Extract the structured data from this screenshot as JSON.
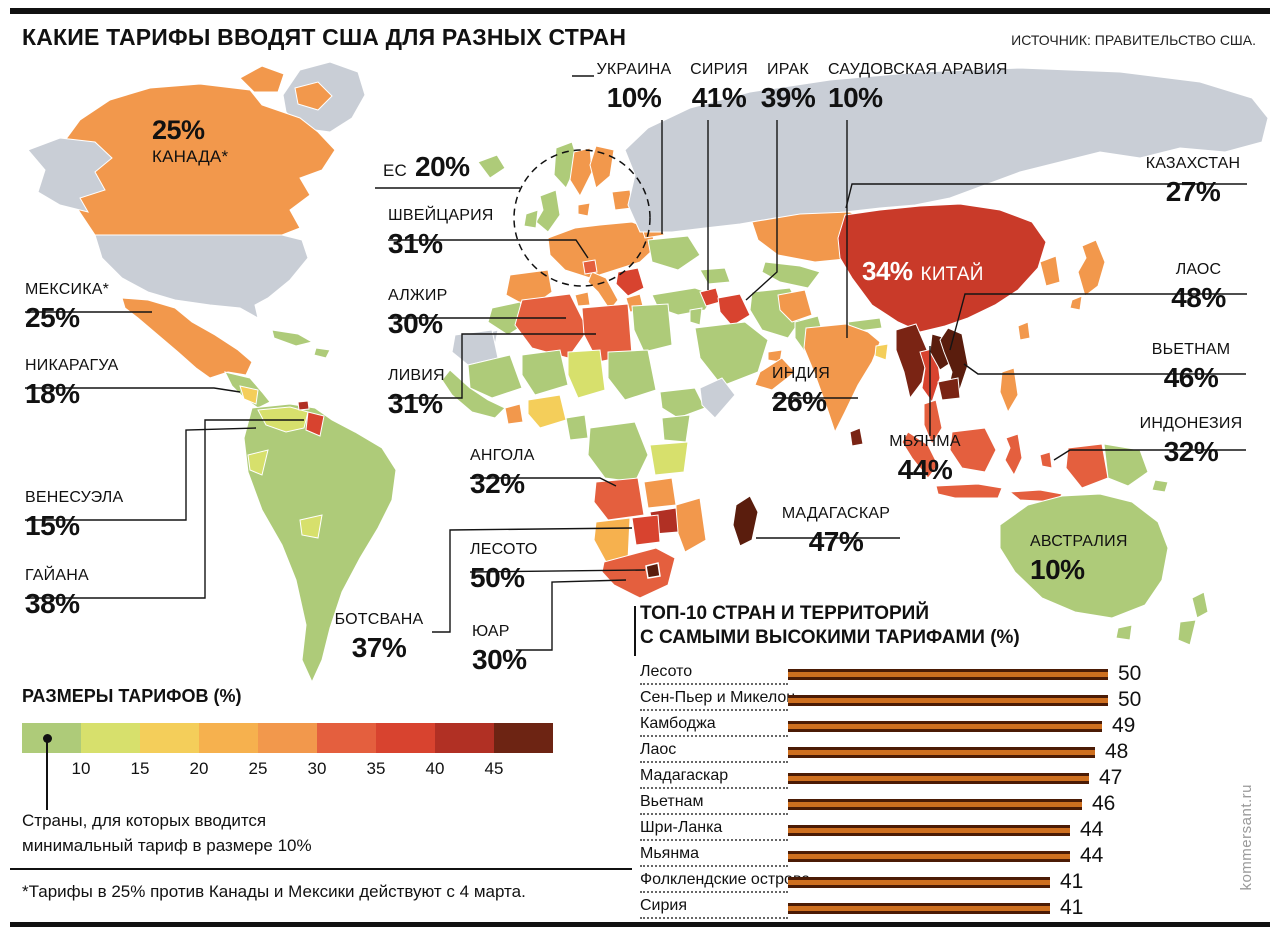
{
  "title": "КАКИЕ ТАРИФЫ ВВОДЯТ США ДЛЯ РАЗНЫХ СТРАН",
  "source": "ИСТОЧНИК: ПРАВИТЕЛЬСТВО США.",
  "watermark": "kommersant.ru",
  "colors": {
    "land_gray": "#c9ced6",
    "green": "#aecb79",
    "yellow_green": "#d7e06c",
    "yellow": "#f4ce5a",
    "light_orange": "#f6b14e",
    "orange": "#f2984c",
    "orange_red": "#e45f3e",
    "red": "#d8432f",
    "dark_red": "#b13024",
    "brown": "#7a2414",
    "dark_brown": "#5a1d0d",
    "china_red": "#c93a29",
    "bar_dark": "#4b1b05",
    "bar_orange": "#ce6f1f"
  },
  "labels": {
    "canada": {
      "name": "КАНАДА*",
      "value": "25%"
    },
    "mexico": {
      "name": "МЕКСИКА*",
      "value": "25%"
    },
    "nicaragua": {
      "name": "НИКАРАГУА",
      "value": "18%"
    },
    "venezuela": {
      "name": "ВЕНЕСУЭЛА",
      "value": "15%"
    },
    "guyana": {
      "name": "ГАЙАНА",
      "value": "38%"
    },
    "ec": {
      "name": "ЕС",
      "value": "20%"
    },
    "switzerland": {
      "name": "ШВЕЙЦАРИЯ",
      "value": "31%"
    },
    "ukraine": {
      "name": "УКРАИНА",
      "value": "10%"
    },
    "syria": {
      "name": "СИРИЯ",
      "value": "41%"
    },
    "iraq": {
      "name": "ИРАК",
      "value": "39%"
    },
    "saudi": {
      "name": "САУДОВСКАЯ АРАВИЯ",
      "value": "10%"
    },
    "kazakhstan": {
      "name": "КАЗАХСТАН",
      "value": "27%"
    },
    "china": {
      "name": "КИТАЙ",
      "value": "34%"
    },
    "laos": {
      "name": "ЛАОС",
      "value": "48%"
    },
    "vietnam": {
      "name": "ВЬЕТНАМ",
      "value": "46%"
    },
    "india": {
      "name": "ИНДИЯ",
      "value": "26%"
    },
    "myanmar": {
      "name": "МЬЯНМА",
      "value": "44%"
    },
    "indonesia": {
      "name": "ИНДОНЕЗИЯ",
      "value": "32%"
    },
    "algeria": {
      "name": "АЛЖИР",
      "value": "30%"
    },
    "libya": {
      "name": "ЛИВИЯ",
      "value": "31%"
    },
    "angola": {
      "name": "АНГОЛА",
      "value": "32%"
    },
    "madagascar": {
      "name": "МАДАГАСКАР",
      "value": "47%"
    },
    "lesotho": {
      "name": "ЛЕСОТО",
      "value": "50%"
    },
    "botswana": {
      "name": "БОТСВАНА",
      "value": "37%"
    },
    "yuar": {
      "name": "ЮАР",
      "value": "30%"
    },
    "australia": {
      "name": "АВСТРАЛИЯ",
      "value": "10%"
    }
  },
  "legend": {
    "title": "РАЗМЕРЫ ТАРИФОВ (%)",
    "ticks": [
      "10",
      "15",
      "20",
      "25",
      "30",
      "35",
      "40",
      "45"
    ],
    "colors": [
      "#aecb79",
      "#d7e06c",
      "#f4ce5a",
      "#f6b14e",
      "#f2984c",
      "#e45f3e",
      "#d8432f",
      "#b13024",
      "#6d2413"
    ],
    "note": "Страны, для которых вводится минимальный тариф в размере 10%"
  },
  "footnote": "*Тарифы в 25% против Канады и Мексики действуют с 4 марта.",
  "barchart": {
    "title1": "ТОП-10 СТРАН И ТЕРРИТОРИЙ",
    "title2": "С САМЫМИ ВЫСОКИМИ ТАРИФАМИ (%)"
  },
  "chart_data": [
    {
      "type": "heatmap",
      "subtype": "choropleth_world_map",
      "title": "КАКИЕ ТАРИФЫ ВВОДЯТ США ДЛЯ РАЗНЫХ СТРАН",
      "unit": "%",
      "legend_title": "РАЗМЕРЫ ТАРИФОВ (%)",
      "legend_scale": [
        10,
        15,
        20,
        25,
        30,
        35,
        40,
        45
      ],
      "points": [
        {
          "country": "Канада",
          "value": 25
        },
        {
          "country": "Мексика",
          "value": 25
        },
        {
          "country": "Никарагуа",
          "value": 18
        },
        {
          "country": "Венесуэла",
          "value": 15
        },
        {
          "country": "Гайана",
          "value": 38
        },
        {
          "country": "ЕС",
          "value": 20
        },
        {
          "country": "Швейцария",
          "value": 31
        },
        {
          "country": "Украина",
          "value": 10
        },
        {
          "country": "Сирия",
          "value": 41
        },
        {
          "country": "Ирак",
          "value": 39
        },
        {
          "country": "Саудовская Аравия",
          "value": 10
        },
        {
          "country": "Казахстан",
          "value": 27
        },
        {
          "country": "Китай",
          "value": 34
        },
        {
          "country": "Лаос",
          "value": 48
        },
        {
          "country": "Вьетнам",
          "value": 46
        },
        {
          "country": "Индия",
          "value": 26
        },
        {
          "country": "Мьянма",
          "value": 44
        },
        {
          "country": "Индонезия",
          "value": 32
        },
        {
          "country": "Алжир",
          "value": 30
        },
        {
          "country": "Ливия",
          "value": 31
        },
        {
          "country": "Ангола",
          "value": 32
        },
        {
          "country": "Мадагаскар",
          "value": 47
        },
        {
          "country": "Лесото",
          "value": 50
        },
        {
          "country": "Ботсвана",
          "value": 37
        },
        {
          "country": "ЮАР",
          "value": 30
        },
        {
          "country": "Австралия",
          "value": 10
        }
      ]
    },
    {
      "type": "bar",
      "orientation": "horizontal",
      "title": "ТОП-10 СТРАН И ТЕРРИТОРИЙ С САМЫМИ ВЫСОКИМИ ТАРИФАМИ (%)",
      "categories": [
        "Лесото",
        "Сен-Пьер и Микелон",
        "Камбоджа",
        "Лаос",
        "Мадагаскар",
        "Вьетнам",
        "Шри-Ланка",
        "Мьянма",
        "Фолклендские острова",
        "Сирия"
      ],
      "values": [
        50,
        50,
        49,
        48,
        47,
        46,
        44,
        44,
        41,
        41
      ],
      "xlim": [
        0,
        50
      ],
      "grid": false,
      "legend_position": "none"
    }
  ]
}
